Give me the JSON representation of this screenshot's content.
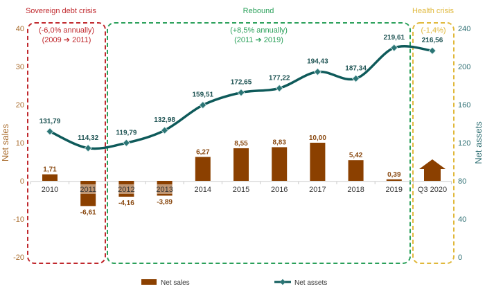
{
  "chart_data": {
    "type": "bar+line",
    "categories": [
      "2010",
      "2011",
      "2012",
      "2013",
      "2014",
      "2015",
      "2016",
      "2017",
      "2018",
      "2019",
      "Q3 2020"
    ],
    "series": [
      {
        "name": "Net sales",
        "type": "bar",
        "axis": "left",
        "values": [
          1.71,
          -6.61,
          -4.16,
          -3.89,
          6.27,
          8.55,
          8.83,
          10.0,
          5.42,
          0.39,
          null
        ],
        "labels": [
          "1,71",
          "-6,61",
          "-4,16",
          "-3,89",
          "6,27",
          "8,55",
          "8,83",
          "10,00",
          "5,42",
          "0,39",
          ""
        ],
        "q3_2020_marker": "up-arrow"
      },
      {
        "name": "Net assets",
        "type": "line",
        "axis": "right",
        "values": [
          131.79,
          114.32,
          119.79,
          132.98,
          159.51,
          172.65,
          177.22,
          194.43,
          187.34,
          219.61,
          216.56
        ],
        "labels": [
          "131,79",
          "114,32",
          "119,79",
          "132,98",
          "159,51",
          "172,65",
          "177,22",
          "194,43",
          "187,34",
          "219,61",
          "216,56"
        ]
      }
    ],
    "ylabel_left": "Net sales",
    "ylabel_right": "Net assets",
    "ylim_left": [
      -20,
      40
    ],
    "yticks_left": [
      "40",
      "30",
      "20",
      "10",
      "0",
      "-10",
      "-20"
    ],
    "ylim_right": [
      0,
      240
    ],
    "yticks_right": [
      "240",
      "200",
      "160",
      "120",
      "80",
      "40",
      "0"
    ],
    "legend": [
      "Net sales",
      "Net assets"
    ],
    "legend_placement": "bottom",
    "periods": [
      {
        "title": "Sovereign debt crisis",
        "line1": "(-6,0% annually)",
        "line2": "(2009 ➔ 2011)",
        "color": "#c0282d"
      },
      {
        "title": "Rebound",
        "line1": "(+8,5% annually)",
        "line2": "(2011 ➔ 2019)",
        "color": "#2aa05a"
      },
      {
        "title": "Health crisis",
        "line1": "(-1,4%)",
        "line2": "",
        "color": "#e0b83a"
      }
    ],
    "colors": {
      "bar": "#8b4000",
      "line": "#0e5a5a"
    }
  }
}
